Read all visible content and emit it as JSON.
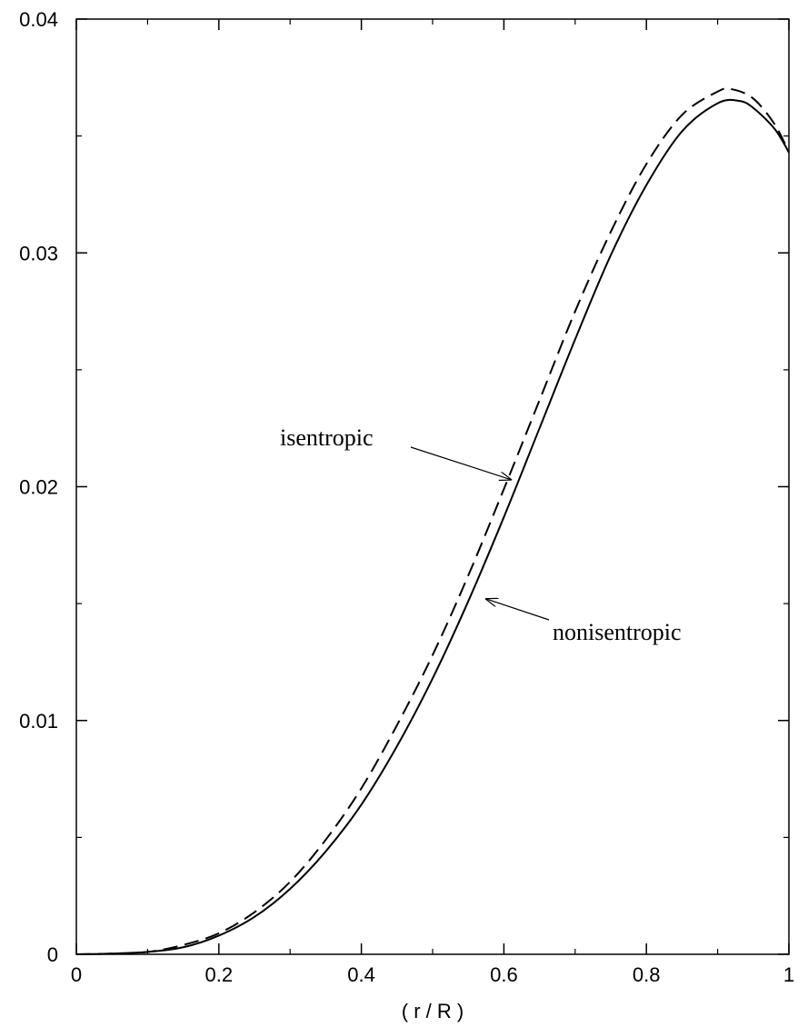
{
  "chart_data": {
    "type": "line",
    "title": "",
    "xlabel": "( r / R )",
    "ylabel": "",
    "xlim": [
      0,
      1
    ],
    "ylim": [
      0,
      0.04
    ],
    "grid": false,
    "x_major_ticks": [
      0,
      0.2,
      0.4,
      0.6,
      0.8,
      1
    ],
    "x_tick_labels": [
      "0",
      "0.2",
      "0.4",
      "0.6",
      "0.8",
      "1"
    ],
    "x_minor_ticks": [
      0.1,
      0.3,
      0.5,
      0.7,
      0.9
    ],
    "y_major_ticks": [
      0,
      0.01,
      0.02,
      0.03,
      0.04
    ],
    "y_tick_labels": [
      "0",
      "0.01",
      "0.02",
      "0.03",
      "0.04"
    ],
    "y_minor_ticks": [
      0.005,
      0.015,
      0.025,
      0.035
    ],
    "series": [
      {
        "name": "isentropic",
        "style": "dashed",
        "color": "#000000",
        "x": [
          0,
          0.05,
          0.1,
          0.15,
          0.2,
          0.25,
          0.3,
          0.35,
          0.4,
          0.45,
          0.5,
          0.55,
          0.6,
          0.65,
          0.7,
          0.75,
          0.8,
          0.85,
          0.9,
          0.92,
          0.95,
          0.98,
          1.0
        ],
        "y": [
          0,
          3e-05,
          0.0001,
          0.0004,
          0.0009,
          0.0018,
          0.0031,
          0.0049,
          0.0071,
          0.0098,
          0.0128,
          0.0162,
          0.0199,
          0.0237,
          0.0275,
          0.0309,
          0.0338,
          0.0359,
          0.0369,
          0.037,
          0.0366,
          0.0355,
          0.0343
        ]
      },
      {
        "name": "nonisentropic",
        "style": "solid",
        "color": "#000000",
        "x": [
          0,
          0.05,
          0.1,
          0.15,
          0.2,
          0.25,
          0.3,
          0.35,
          0.4,
          0.45,
          0.5,
          0.55,
          0.6,
          0.65,
          0.7,
          0.75,
          0.8,
          0.85,
          0.9,
          0.93,
          0.95,
          0.98,
          1.0
        ],
        "y": [
          0,
          3e-05,
          0.0001,
          0.0003,
          0.0008,
          0.0016,
          0.0028,
          0.0044,
          0.0064,
          0.0089,
          0.0118,
          0.0151,
          0.0187,
          0.0225,
          0.0263,
          0.0299,
          0.0329,
          0.0352,
          0.0364,
          0.0365,
          0.0362,
          0.0353,
          0.0343
        ]
      }
    ],
    "annotations": [
      {
        "text": "isentropic",
        "series": "isentropic",
        "point_x": 0.61,
        "point_y": 0.0203
      },
      {
        "text": "nonisentropic",
        "series": "nonisentropic",
        "point_x": 0.575,
        "point_y": 0.0152
      }
    ]
  }
}
